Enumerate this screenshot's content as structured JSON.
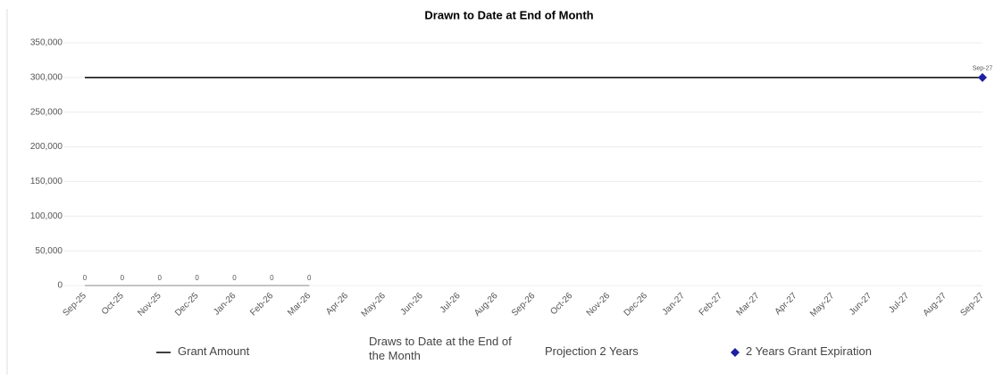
{
  "chart_data": {
    "type": "line",
    "title": "Drawn to Date at End of Month",
    "categories": [
      "Sep-25",
      "Oct-25",
      "Nov-25",
      "Dec-25",
      "Jan-26",
      "Feb-26",
      "Mar-26",
      "Apr-26",
      "May-26",
      "Jun-26",
      "Jul-26",
      "Aug-26",
      "Sep-26",
      "Oct-26",
      "Nov-26",
      "Dec-26",
      "Jan-27",
      "Feb-27",
      "Mar-27",
      "Apr-27",
      "May-27",
      "Jun-27",
      "Jul-27",
      "Aug-27",
      "Sep-27"
    ],
    "series": [
      {
        "name": "Grant Amount",
        "color": "#000000",
        "marker": "none",
        "values": [
          300000,
          300000,
          300000,
          300000,
          300000,
          300000,
          300000,
          300000,
          300000,
          300000,
          300000,
          300000,
          300000,
          300000,
          300000,
          300000,
          300000,
          300000,
          300000,
          300000,
          300000,
          300000,
          300000,
          300000,
          300000
        ]
      },
      {
        "name": "Draws to Date at the End of the Month",
        "color": "#888888",
        "marker": "none",
        "data_labels": true,
        "values": [
          0,
          0,
          0,
          0,
          0,
          0,
          0,
          null,
          null,
          null,
          null,
          null,
          null,
          null,
          null,
          null,
          null,
          null,
          null,
          null,
          null,
          null,
          null,
          null,
          null
        ]
      },
      {
        "name": "Projection 2 Years",
        "color": "#aaaaaa",
        "marker": "none",
        "values": [
          null,
          null,
          null,
          null,
          null,
          null,
          null,
          null,
          null,
          null,
          null,
          null,
          null,
          null,
          null,
          null,
          null,
          null,
          null,
          null,
          null,
          null,
          null,
          null,
          null
        ]
      },
      {
        "name": "2 Years Grant Expiration",
        "color": "#1f1fa0",
        "marker": "diamond",
        "values": [
          null,
          null,
          null,
          null,
          null,
          null,
          null,
          null,
          null,
          null,
          null,
          null,
          null,
          null,
          null,
          null,
          null,
          null,
          null,
          null,
          null,
          null,
          null,
          null,
          300000
        ]
      }
    ],
    "annotation": "Sep-27",
    "ylim": [
      0,
      350000
    ],
    "yticks": [
      0,
      {
        "value": 50000,
        "label": "50,000"
      },
      {
        "value": 100000,
        "label": "100,000"
      },
      {
        "value": 150000,
        "label": "150,000"
      },
      {
        "value": 200000,
        "label": "200,000"
      },
      {
        "value": 250000,
        "label": "250,000"
      },
      {
        "value": 300000,
        "label": "300,000"
      },
      {
        "value": 350000,
        "label": "350,000"
      }
    ],
    "grid": true
  }
}
